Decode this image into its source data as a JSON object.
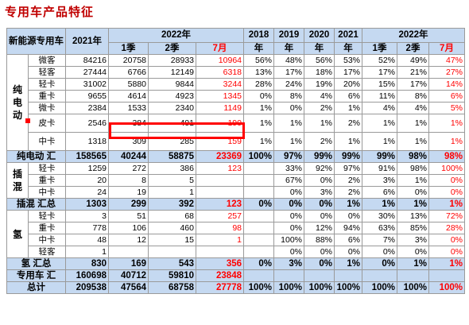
{
  "title": "专用车产品特征",
  "header": {
    "corner": "新能源专用车",
    "y2021": "2021年",
    "y2022": "2022年",
    "q1": "1季",
    "q2": "2季",
    "jul": "7月",
    "y2018": "2018",
    "y2019": "2019",
    "y2020": "2020",
    "y2021b": "2021",
    "nian": "年",
    "y2022b": "2022年"
  },
  "colors": {
    "header_bg": "#c5d9f1",
    "highlight": "#ff0000",
    "red_text": "#ff0000"
  },
  "groups": {
    "bev": "纯电动",
    "phev": "插混",
    "fcv": "氢"
  },
  "rows": {
    "bev_micro_bus": {
      "sub": "微客",
      "v2021": "84216",
      "q1": "20758",
      "q2": "28933",
      "jul": "10964",
      "s2018": "56%",
      "s2019": "48%",
      "s2020": "56%",
      "s2021": "53%",
      "sq1": "52%",
      "sq2": "49%",
      "sjul": "47%"
    },
    "bev_light_bus": {
      "sub": "轻客",
      "v2021": "27444",
      "q1": "6766",
      "q2": "12149",
      "jul": "6318",
      "s2018": "13%",
      "s2019": "17%",
      "s2020": "18%",
      "s2021": "17%",
      "sq1": "17%",
      "sq2": "21%",
      "sjul": "27%"
    },
    "bev_light_truck": {
      "sub": "轻卡",
      "v2021": "31002",
      "q1": "5880",
      "q2": "9844",
      "jul": "3244",
      "s2018": "28%",
      "s2019": "24%",
      "s2020": "19%",
      "s2021": "20%",
      "sq1": "15%",
      "sq2": "17%",
      "sjul": "14%"
    },
    "bev_heavy_truck": {
      "sub": "重卡",
      "v2021": "9655",
      "q1": "4614",
      "q2": "4923",
      "jul": "1345",
      "s2018": "0%",
      "s2019": "8%",
      "s2020": "4%",
      "s2021": "6%",
      "sq1": "11%",
      "sq2": "8%",
      "sjul": "6%"
    },
    "bev_mini_truck": {
      "sub": "微卡",
      "v2021": "2384",
      "q1": "1533",
      "q2": "2340",
      "jul": "1149",
      "s2018": "1%",
      "s2019": "0%",
      "s2020": "2%",
      "s2021": "1%",
      "sq1": "4%",
      "sq2": "4%",
      "sjul": "5%"
    },
    "bev_pickup": {
      "sub": "皮卡",
      "v2021": "2546",
      "q1": "384",
      "q2": "401",
      "jul": "190",
      "s2018": "1%",
      "s2019": "1%",
      "s2020": "1%",
      "s2021": "2%",
      "sq1": "1%",
      "sq2": "1%",
      "sjul": "1%"
    },
    "bev_medium_truck": {
      "sub": "中卡",
      "v2021": "1318",
      "q1": "309",
      "q2": "285",
      "jul": "159",
      "s2018": "1%",
      "s2019": "1%",
      "s2020": "2%",
      "s2021": "1%",
      "sq1": "1%",
      "sq2": "1%",
      "sjul": "1%"
    },
    "bev_total": {
      "label": "纯电动 汇",
      "v2021": "158565",
      "q1": "40244",
      "q2": "58875",
      "jul": "23369",
      "s2018": "100%",
      "s2019": "97%",
      "s2020": "99%",
      "s2021": "99%",
      "sq1": "99%",
      "sq2": "98%",
      "sjul": "98%"
    },
    "phev_light_truck": {
      "sub": "轻卡",
      "v2021": "1259",
      "q1": "272",
      "q2": "386",
      "jul": "123",
      "s2018": "",
      "s2019": "33%",
      "s2020": "92%",
      "s2021": "97%",
      "sq1": "91%",
      "sq2": "98%",
      "sjul": "100%"
    },
    "phev_heavy_truck": {
      "sub": "重卡",
      "v2021": "20",
      "q1": "8",
      "q2": "5",
      "jul": "",
      "s2018": "",
      "s2019": "67%",
      "s2020": "0%",
      "s2021": "2%",
      "sq1": "3%",
      "sq2": "1%",
      "sjul": "0%"
    },
    "phev_medium_truck": {
      "sub": "中卡",
      "v2021": "24",
      "q1": "19",
      "q2": "1",
      "jul": "",
      "s2018": "",
      "s2019": "0%",
      "s2020": "3%",
      "s2021": "2%",
      "sq1": "6%",
      "sq2": "0%",
      "sjul": "0%"
    },
    "phev_total": {
      "label": "插混 汇总",
      "v2021": "1303",
      "q1": "299",
      "q2": "392",
      "jul": "123",
      "s2018": "0%",
      "s2019": "0%",
      "s2020": "0%",
      "s2021": "1%",
      "sq1": "1%",
      "sq2": "1%",
      "sjul": "1%"
    },
    "fcv_light_truck": {
      "sub": "轻卡",
      "v2021": "3",
      "q1": "51",
      "q2": "68",
      "jul": "257",
      "s2018": "",
      "s2019": "0%",
      "s2020": "0%",
      "s2021": "0%",
      "sq1": "30%",
      "sq2": "13%",
      "sjul": "72%"
    },
    "fcv_heavy_truck": {
      "sub": "重卡",
      "v2021": "778",
      "q1": "106",
      "q2": "460",
      "jul": "98",
      "s2018": "",
      "s2019": "0%",
      "s2020": "12%",
      "s2021": "94%",
      "sq1": "63%",
      "sq2": "85%",
      "sjul": "28%"
    },
    "fcv_medium_truck": {
      "sub": "中卡",
      "v2021": "48",
      "q1": "12",
      "q2": "15",
      "jul": "1",
      "s2018": "",
      "s2019": "100%",
      "s2020": "88%",
      "s2021": "6%",
      "sq1": "7%",
      "sq2": "3%",
      "sjul": "0%"
    },
    "fcv_light_bus": {
      "sub": "轻客",
      "v2021": "1",
      "q1": "",
      "q2": "",
      "jul": "",
      "s2018": "",
      "s2019": "0%",
      "s2020": "0%",
      "s2021": "0%",
      "sq1": "0%",
      "sq2": "0%",
      "sjul": "0%"
    },
    "fcv_total": {
      "label": "氢 汇总",
      "v2021": "830",
      "q1": "169",
      "q2": "543",
      "jul": "356",
      "s2018": "0%",
      "s2019": "3%",
      "s2020": "0%",
      "s2021": "1%",
      "sq1": "0%",
      "sq2": "1%",
      "sjul": "1%"
    },
    "special_total": {
      "label": "专用车 汇",
      "v2021": "160698",
      "q1": "40712",
      "q2": "59810",
      "jul": "23848",
      "s2018": "",
      "s2019": "",
      "s2020": "",
      "s2021": "",
      "sq1": "",
      "sq2": "",
      "sjul": ""
    },
    "grand_total": {
      "label": "总计",
      "v2021": "209538",
      "q1": "47564",
      "q2": "68758",
      "jul": "27778",
      "s2018": "100%",
      "s2019": "100%",
      "s2020": "100%",
      "s2021": "100%",
      "sq1": "100%",
      "sq2": "100%",
      "sjul": "100%"
    }
  }
}
